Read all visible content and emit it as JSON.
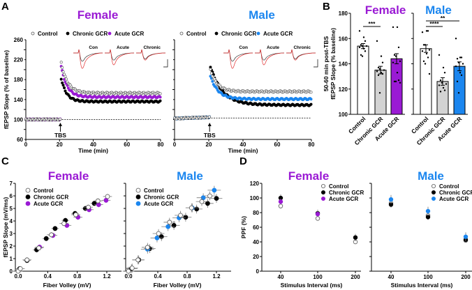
{
  "colors": {
    "female": "#9a1ad4",
    "male": "#1b86ef",
    "chronic": "#000000",
    "control": "#ffffff",
    "chronic_bar": "#d3d3d3",
    "trace_after": "#e23030"
  },
  "panels": {
    "A": "A",
    "B": "B",
    "C": "C",
    "D": "D"
  },
  "titles": {
    "female": "Female",
    "male": "Male"
  },
  "legend": {
    "control": "Control",
    "chronic": "Chronic GCR",
    "acute": "Acute GCR"
  },
  "chart_data": [
    {
      "id": "A-female",
      "type": "scatter",
      "title": "Female",
      "xlabel": "Time (min)",
      "ylabel": "fEPSP Slope (% of baseline)",
      "xlim": [
        0,
        80
      ],
      "ylim": [
        60,
        260
      ],
      "xticks": [
        0,
        20,
        40,
        60,
        80
      ],
      "yticks": [
        60,
        100,
        140,
        180,
        220,
        260
      ],
      "annotation": "TBS",
      "tbs_time": 20,
      "baseline_line": 100,
      "inset_labels": [
        "Con",
        "Acute",
        "Chronic"
      ],
      "series": [
        {
          "name": "Chronic GCR",
          "baseline": 100,
          "peak": 190,
          "plateau": 136,
          "tau": 3.2
        },
        {
          "name": "Acute GCR",
          "baseline": 100,
          "peak": 216,
          "plateau": 145,
          "tau": 3.5
        },
        {
          "name": "Control",
          "baseline": 100,
          "peak": 222,
          "plateau": 153,
          "tau": 3.8
        }
      ]
    },
    {
      "id": "A-male",
      "type": "scatter",
      "title": "Male",
      "xlabel": "Time (min)",
      "ylabel": "",
      "xlim": [
        0,
        80
      ],
      "ylim": [
        60,
        260
      ],
      "xticks": [
        0,
        20,
        40,
        60,
        80
      ],
      "yticks": [
        60,
        100,
        140,
        180,
        220,
        260
      ],
      "annotation": "TBS",
      "tbs_time": 20,
      "baseline_line": 103,
      "inset_labels": [
        "Con",
        "Acute",
        "Chronic"
      ],
      "series": [
        {
          "name": "Chronic GCR",
          "baseline": 103,
          "peak": 212,
          "plateau": 129,
          "tau": 7
        },
        {
          "name": "Acute GCR",
          "baseline": 103,
          "peak": 192,
          "plateau": 141,
          "tau": 4.5
        },
        {
          "name": "Control",
          "baseline": 103,
          "peak": 205,
          "plateau": 156,
          "tau": 4
        }
      ]
    },
    {
      "id": "B-female",
      "type": "bar",
      "title": "Female",
      "ylabel": [
        "50-60 min post-TBS",
        "fEPSP Slope (% baseline)"
      ],
      "ylim": [
        100,
        180
      ],
      "yticks": [
        100,
        120,
        140,
        160,
        180
      ],
      "categories": [
        "Control",
        "Chronic GCR",
        "Acute GCR"
      ],
      "values": [
        154,
        135,
        144
      ],
      "sem": [
        2,
        3,
        4
      ],
      "points": [
        [
          166,
          161,
          158,
          155,
          154,
          154,
          153,
          152,
          150,
          147,
          146
        ],
        [
          158,
          146,
          141,
          137,
          136,
          135,
          134,
          133,
          132,
          131,
          117
        ],
        [
          169,
          169,
          153,
          147,
          146,
          142,
          141,
          133,
          127,
          126,
          126,
          125
        ]
      ],
      "significance": [
        {
          "pair": [
            0,
            1
          ],
          "label": "***"
        }
      ]
    },
    {
      "id": "B-male",
      "type": "bar",
      "title": "Male",
      "ylim": [
        100,
        180
      ],
      "yticks": [
        100,
        120,
        140,
        160,
        180
      ],
      "categories": [
        "Control",
        "Chronic GCR",
        "Acute GCR"
      ],
      "values": [
        152,
        126,
        138
      ],
      "sem": [
        3,
        3,
        3.5
      ],
      "points": [
        [
          165,
          166,
          166,
          155,
          155,
          151,
          150,
          148,
          145,
          142,
          140,
          132
        ],
        [
          147,
          137,
          133,
          127,
          125,
          124,
          123,
          121,
          119,
          118
        ],
        [
          160,
          145,
          145,
          144,
          141,
          140,
          138,
          133,
          131,
          126,
          117
        ]
      ],
      "significance": [
        {
          "pair": [
            0,
            1
          ],
          "label": "****"
        },
        {
          "pair": [
            0,
            2
          ],
          "label": "**"
        }
      ]
    },
    {
      "id": "C-female",
      "type": "scatter",
      "title": "Female",
      "xlabel": "Fiber Volley (mV)",
      "ylabel": "fEPSP Slope (mV/ms)",
      "xlim": [
        0,
        1.4
      ],
      "ylim": [
        0,
        7
      ],
      "xticks": [
        0.0,
        0.4,
        0.8,
        1.2
      ],
      "xticklabels": [
        "0.0",
        "0.4",
        "0.8",
        "1.2"
      ],
      "yticks": [
        0,
        1,
        2,
        3,
        4,
        5,
        6,
        7
      ],
      "series": [
        {
          "name": "Chronic GCR",
          "x": [
            0.02,
            0.12,
            0.25,
            0.38,
            0.5,
            0.64,
            0.77,
            0.91,
            1.03
          ],
          "y": [
            0.2,
            0.85,
            1.7,
            2.6,
            3.4,
            4.05,
            4.6,
            5.0,
            5.4
          ],
          "xerr": 0.05,
          "yerr": 0.2
        },
        {
          "name": "Acute GCR",
          "x": [
            0.29,
            0.47,
            0.66,
            0.81,
            0.96,
            1.09,
            1.19
          ],
          "y": [
            1.92,
            2.85,
            3.65,
            4.3,
            4.9,
            5.3,
            5.65
          ],
          "xerr": 0.06,
          "yerr": 0.2
        },
        {
          "name": "Control",
          "x": [
            0,
            0.03,
            0.12,
            0.28,
            0.45,
            0.62,
            0.78,
            0.95,
            1.08,
            1.21
          ],
          "y": [
            0,
            0.2,
            0.9,
            1.85,
            2.9,
            3.8,
            4.5,
            5.1,
            5.6,
            5.95
          ],
          "xerr": 0.06,
          "yerr": 0.2
        }
      ]
    },
    {
      "id": "C-male",
      "type": "scatter",
      "title": "Male",
      "xlabel": "Fiber Volley (mV)",
      "ylabel": "",
      "xlim": [
        0,
        1.4
      ],
      "ylim": [
        0,
        7
      ],
      "xticks": [
        0.0,
        0.4,
        0.8,
        1.2
      ],
      "xticklabels": [
        "0.0",
        "0.4",
        "0.8",
        "1.2"
      ],
      "yticks": [
        0,
        1,
        2,
        3,
        4,
        5,
        6,
        7
      ],
      "series": [
        {
          "name": "Chronic GCR",
          "x": [
            0.04,
            0.14,
            0.29,
            0.45,
            0.62,
            0.78,
            0.93,
            1.08,
            1.2
          ],
          "y": [
            0.2,
            0.9,
            1.8,
            2.75,
            3.65,
            4.3,
            4.95,
            5.4,
            5.8
          ],
          "xerr": 0.08,
          "yerr": 0.35
        },
        {
          "name": "Acute GCR",
          "x": [
            0.26,
            0.39,
            0.54,
            0.69,
            0.87,
            1.02,
            1.17
          ],
          "y": [
            1.75,
            2.65,
            3.55,
            4.25,
            5.05,
            5.85,
            6.45
          ],
          "xerr": 0.09,
          "yerr": 0.35
        },
        {
          "name": "Control",
          "x": [
            0,
            0.05,
            0.13,
            0.26,
            0.41,
            0.56,
            0.71,
            0.86,
            1.0,
            1.11
          ],
          "y": [
            0,
            0.25,
            0.9,
            1.9,
            3.0,
            3.9,
            4.45,
            5.05,
            5.55,
            6.0
          ],
          "xerr": 0.08,
          "yerr": 0.35
        }
      ]
    },
    {
      "id": "D-female",
      "type": "scatter",
      "title": "Female",
      "xlabel": "Stimulus Interval (ms)",
      "ylabel": "PPF (%)",
      "ylim": [
        0,
        120
      ],
      "yticks": [
        0,
        20,
        40,
        60,
        80,
        100,
        120
      ],
      "categories": [
        "40",
        "100",
        "200"
      ],
      "series": [
        {
          "name": "Control",
          "values": [
            89,
            72,
            40
          ],
          "err": 3
        },
        {
          "name": "Chronic GCR",
          "values": [
            100,
            79,
            46
          ],
          "err": 5
        },
        {
          "name": "Acute GCR",
          "values": [
            95,
            78,
            null
          ],
          "err": 4
        }
      ]
    },
    {
      "id": "D-male",
      "type": "scatter",
      "title": "Male",
      "xlabel": "Stimulus Interval (ms)",
      "ylabel": "",
      "ylim": [
        0,
        120
      ],
      "yticks": [
        0,
        20,
        40,
        60,
        80,
        100,
        120
      ],
      "categories": [
        "40",
        "100",
        "200"
      ],
      "series": [
        {
          "name": "Control",
          "values": [
            93,
            76,
            42
          ],
          "err": 3
        },
        {
          "name": "Chronic GCR",
          "values": [
            91,
            74,
            43
          ],
          "err": 4
        },
        {
          "name": "Acute GCR",
          "values": [
            98,
            82,
            47
          ],
          "err": 6
        }
      ]
    }
  ]
}
